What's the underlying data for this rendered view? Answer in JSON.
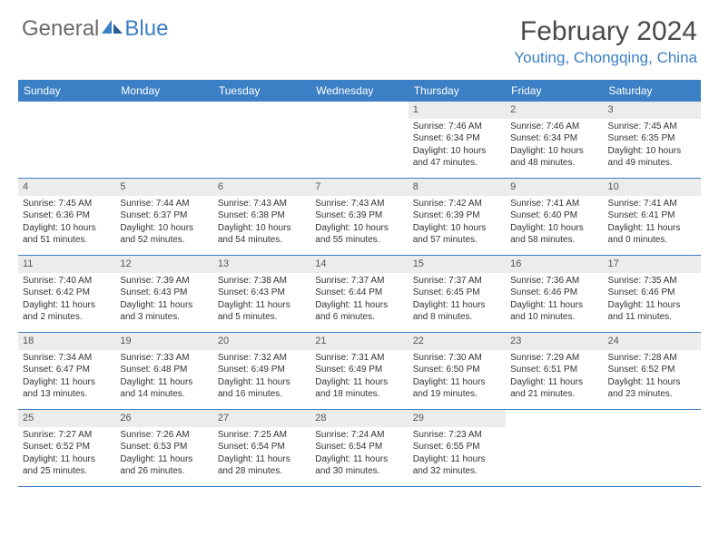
{
  "brand": {
    "part1": "General",
    "part2": "Blue"
  },
  "title": "February 2024",
  "location": "Youting, Chongqing, China",
  "colors": {
    "accent": "#3b7fc4",
    "header_bg": "#3b7fc4",
    "header_text": "#ffffff",
    "daynum_bg": "#ececec",
    "border": "#3b7fc4",
    "text": "#333333",
    "logo_gray": "#6a6a6a"
  },
  "weekdays": [
    "Sunday",
    "Monday",
    "Tuesday",
    "Wednesday",
    "Thursday",
    "Friday",
    "Saturday"
  ],
  "weeks": [
    [
      {
        "empty": true
      },
      {
        "empty": true
      },
      {
        "empty": true
      },
      {
        "empty": true
      },
      {
        "day": "1",
        "sunrise": "Sunrise: 7:46 AM",
        "sunset": "Sunset: 6:34 PM",
        "daylight1": "Daylight: 10 hours",
        "daylight2": "and 47 minutes."
      },
      {
        "day": "2",
        "sunrise": "Sunrise: 7:46 AM",
        "sunset": "Sunset: 6:34 PM",
        "daylight1": "Daylight: 10 hours",
        "daylight2": "and 48 minutes."
      },
      {
        "day": "3",
        "sunrise": "Sunrise: 7:45 AM",
        "sunset": "Sunset: 6:35 PM",
        "daylight1": "Daylight: 10 hours",
        "daylight2": "and 49 minutes."
      }
    ],
    [
      {
        "day": "4",
        "sunrise": "Sunrise: 7:45 AM",
        "sunset": "Sunset: 6:36 PM",
        "daylight1": "Daylight: 10 hours",
        "daylight2": "and 51 minutes."
      },
      {
        "day": "5",
        "sunrise": "Sunrise: 7:44 AM",
        "sunset": "Sunset: 6:37 PM",
        "daylight1": "Daylight: 10 hours",
        "daylight2": "and 52 minutes."
      },
      {
        "day": "6",
        "sunrise": "Sunrise: 7:43 AM",
        "sunset": "Sunset: 6:38 PM",
        "daylight1": "Daylight: 10 hours",
        "daylight2": "and 54 minutes."
      },
      {
        "day": "7",
        "sunrise": "Sunrise: 7:43 AM",
        "sunset": "Sunset: 6:39 PM",
        "daylight1": "Daylight: 10 hours",
        "daylight2": "and 55 minutes."
      },
      {
        "day": "8",
        "sunrise": "Sunrise: 7:42 AM",
        "sunset": "Sunset: 6:39 PM",
        "daylight1": "Daylight: 10 hours",
        "daylight2": "and 57 minutes."
      },
      {
        "day": "9",
        "sunrise": "Sunrise: 7:41 AM",
        "sunset": "Sunset: 6:40 PM",
        "daylight1": "Daylight: 10 hours",
        "daylight2": "and 58 minutes."
      },
      {
        "day": "10",
        "sunrise": "Sunrise: 7:41 AM",
        "sunset": "Sunset: 6:41 PM",
        "daylight1": "Daylight: 11 hours",
        "daylight2": "and 0 minutes."
      }
    ],
    [
      {
        "day": "11",
        "sunrise": "Sunrise: 7:40 AM",
        "sunset": "Sunset: 6:42 PM",
        "daylight1": "Daylight: 11 hours",
        "daylight2": "and 2 minutes."
      },
      {
        "day": "12",
        "sunrise": "Sunrise: 7:39 AM",
        "sunset": "Sunset: 6:43 PM",
        "daylight1": "Daylight: 11 hours",
        "daylight2": "and 3 minutes."
      },
      {
        "day": "13",
        "sunrise": "Sunrise: 7:38 AM",
        "sunset": "Sunset: 6:43 PM",
        "daylight1": "Daylight: 11 hours",
        "daylight2": "and 5 minutes."
      },
      {
        "day": "14",
        "sunrise": "Sunrise: 7:37 AM",
        "sunset": "Sunset: 6:44 PM",
        "daylight1": "Daylight: 11 hours",
        "daylight2": "and 6 minutes."
      },
      {
        "day": "15",
        "sunrise": "Sunrise: 7:37 AM",
        "sunset": "Sunset: 6:45 PM",
        "daylight1": "Daylight: 11 hours",
        "daylight2": "and 8 minutes."
      },
      {
        "day": "16",
        "sunrise": "Sunrise: 7:36 AM",
        "sunset": "Sunset: 6:46 PM",
        "daylight1": "Daylight: 11 hours",
        "daylight2": "and 10 minutes."
      },
      {
        "day": "17",
        "sunrise": "Sunrise: 7:35 AM",
        "sunset": "Sunset: 6:46 PM",
        "daylight1": "Daylight: 11 hours",
        "daylight2": "and 11 minutes."
      }
    ],
    [
      {
        "day": "18",
        "sunrise": "Sunrise: 7:34 AM",
        "sunset": "Sunset: 6:47 PM",
        "daylight1": "Daylight: 11 hours",
        "daylight2": "and 13 minutes."
      },
      {
        "day": "19",
        "sunrise": "Sunrise: 7:33 AM",
        "sunset": "Sunset: 6:48 PM",
        "daylight1": "Daylight: 11 hours",
        "daylight2": "and 14 minutes."
      },
      {
        "day": "20",
        "sunrise": "Sunrise: 7:32 AM",
        "sunset": "Sunset: 6:49 PM",
        "daylight1": "Daylight: 11 hours",
        "daylight2": "and 16 minutes."
      },
      {
        "day": "21",
        "sunrise": "Sunrise: 7:31 AM",
        "sunset": "Sunset: 6:49 PM",
        "daylight1": "Daylight: 11 hours",
        "daylight2": "and 18 minutes."
      },
      {
        "day": "22",
        "sunrise": "Sunrise: 7:30 AM",
        "sunset": "Sunset: 6:50 PM",
        "daylight1": "Daylight: 11 hours",
        "daylight2": "and 19 minutes."
      },
      {
        "day": "23",
        "sunrise": "Sunrise: 7:29 AM",
        "sunset": "Sunset: 6:51 PM",
        "daylight1": "Daylight: 11 hours",
        "daylight2": "and 21 minutes."
      },
      {
        "day": "24",
        "sunrise": "Sunrise: 7:28 AM",
        "sunset": "Sunset: 6:52 PM",
        "daylight1": "Daylight: 11 hours",
        "daylight2": "and 23 minutes."
      }
    ],
    [
      {
        "day": "25",
        "sunrise": "Sunrise: 7:27 AM",
        "sunset": "Sunset: 6:52 PM",
        "daylight1": "Daylight: 11 hours",
        "daylight2": "and 25 minutes."
      },
      {
        "day": "26",
        "sunrise": "Sunrise: 7:26 AM",
        "sunset": "Sunset: 6:53 PM",
        "daylight1": "Daylight: 11 hours",
        "daylight2": "and 26 minutes."
      },
      {
        "day": "27",
        "sunrise": "Sunrise: 7:25 AM",
        "sunset": "Sunset: 6:54 PM",
        "daylight1": "Daylight: 11 hours",
        "daylight2": "and 28 minutes."
      },
      {
        "day": "28",
        "sunrise": "Sunrise: 7:24 AM",
        "sunset": "Sunset: 6:54 PM",
        "daylight1": "Daylight: 11 hours",
        "daylight2": "and 30 minutes."
      },
      {
        "day": "29",
        "sunrise": "Sunrise: 7:23 AM",
        "sunset": "Sunset: 6:55 PM",
        "daylight1": "Daylight: 11 hours",
        "daylight2": "and 32 minutes."
      },
      {
        "empty": true
      },
      {
        "empty": true
      }
    ]
  ]
}
